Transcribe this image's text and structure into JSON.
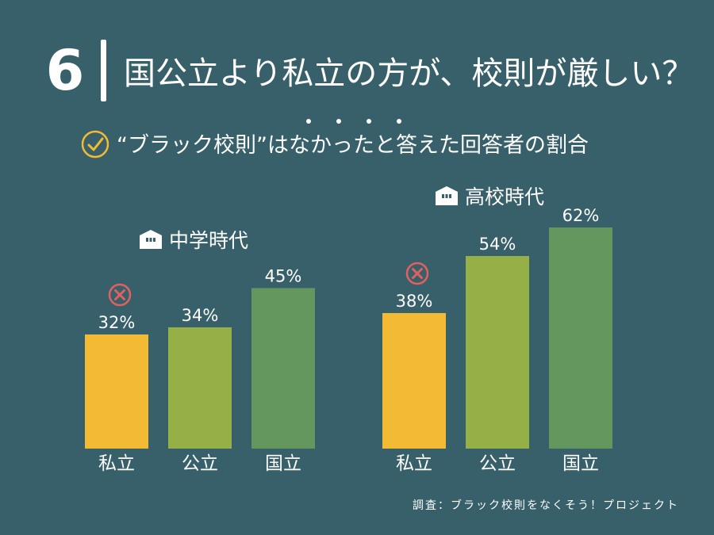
{
  "header": {
    "number": "6",
    "title": "国公立より私立の方が、校則が厳しい？",
    "subtitle": "“ブラック校則”はなかったと答えた回答者の割合",
    "emphasis_dots": 4
  },
  "colors": {
    "background": "#37606a",
    "private": "#f2bb33",
    "public": "#94b046",
    "national": "#64975d",
    "x_mark": "#e2605f",
    "check_mark": "#f2bb33"
  },
  "icons": {
    "check": "check-circle-icon",
    "school": "school-building-icon",
    "cross": "x-circle-icon"
  },
  "chart_data": [
    {
      "type": "bar",
      "title": "中学時代",
      "categories": [
        "私立",
        "公立",
        "国立"
      ],
      "values": [
        32,
        34,
        45
      ],
      "value_labels": [
        "32%",
        "34%",
        "45%"
      ],
      "unit": "%",
      "ylim": [
        0,
        70
      ],
      "grid": false,
      "marked_category": "私立"
    },
    {
      "type": "bar",
      "title": "高校時代",
      "categories": [
        "私立",
        "公立",
        "国立"
      ],
      "values": [
        38,
        54,
        62
      ],
      "value_labels": [
        "38%",
        "54%",
        "62%"
      ],
      "unit": "%",
      "ylim": [
        0,
        70
      ],
      "grid": false,
      "marked_category": "私立"
    }
  ],
  "source": "調査：ブラック校則をなくそう！プロジェクト"
}
